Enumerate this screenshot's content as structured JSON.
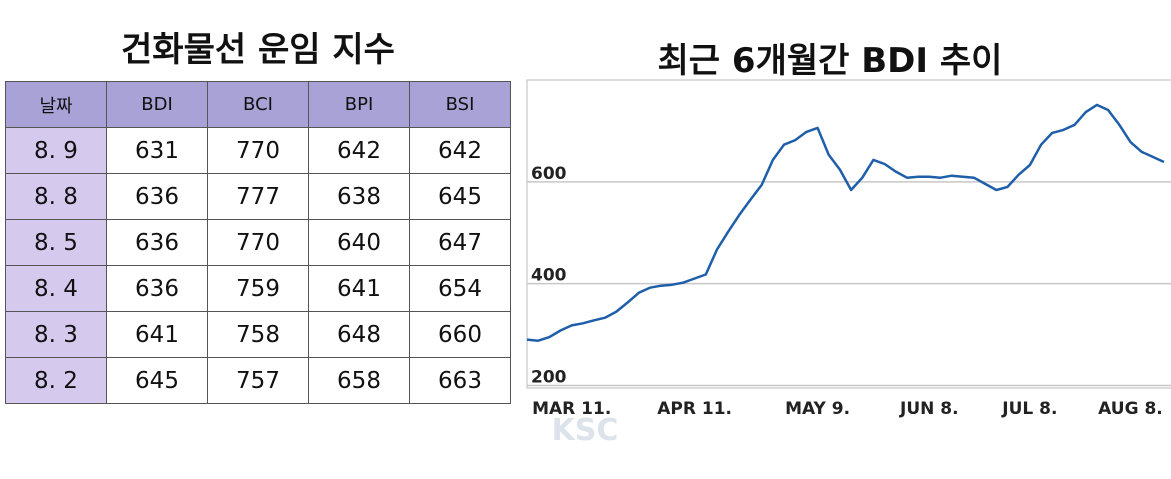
{
  "table": {
    "title": "건화물선 운임 지수",
    "header": [
      "날짜",
      "BDI",
      "BCI",
      "BPI",
      "BSI"
    ],
    "rows": [
      [
        "8. 9",
        "631",
        "770",
        "642",
        "642"
      ],
      [
        "8. 8",
        "636",
        "777",
        "638",
        "645"
      ],
      [
        "8. 5",
        "636",
        "770",
        "640",
        "647"
      ],
      [
        "8. 4",
        "636",
        "759",
        "641",
        "654"
      ],
      [
        "8. 3",
        "641",
        "758",
        "648",
        "660"
      ],
      [
        "8. 2",
        "645",
        "757",
        "658",
        "663"
      ]
    ]
  },
  "chart_data": {
    "type": "line",
    "title": "최근 6개월간 BDI 추이",
    "categories": [
      null,
      null,
      null,
      null,
      "MAR 11.",
      null,
      null,
      null,
      null,
      null,
      null,
      null,
      null,
      null,
      null,
      "APR 11.",
      null,
      null,
      null,
      null,
      null,
      null,
      null,
      null,
      null,
      null,
      "MAY 9.",
      null,
      null,
      null,
      null,
      null,
      null,
      null,
      null,
      null,
      "JUN 8.",
      null,
      null,
      null,
      null,
      null,
      null,
      null,
      null,
      "JUL 8.",
      null,
      null,
      null,
      null,
      null,
      null,
      null,
      null,
      "AUG 8.",
      null,
      null,
      null
    ],
    "series": [
      {
        "name": "BDI",
        "color": "#1f5ea8",
        "values": [
          290,
          288,
          295,
          308,
          318,
          322,
          328,
          333,
          345,
          363,
          382,
          392,
          396,
          398,
          402,
          410,
          418,
          467,
          502,
          535,
          565,
          594,
          643,
          673,
          682,
          698,
          706,
          653,
          624,
          584,
          608,
          643,
          635,
          620,
          608,
          610,
          610,
          608,
          612,
          610,
          608,
          596,
          584,
          590,
          614,
          633,
          673,
          696,
          702,
          712,
          737,
          751,
          741,
          712,
          678,
          659,
          649,
          639
        ]
      }
    ],
    "ylim": [
      195,
      800
    ],
    "yticks": [
      200,
      400,
      600
    ],
    "grid": true
  },
  "watermark": "KSC"
}
